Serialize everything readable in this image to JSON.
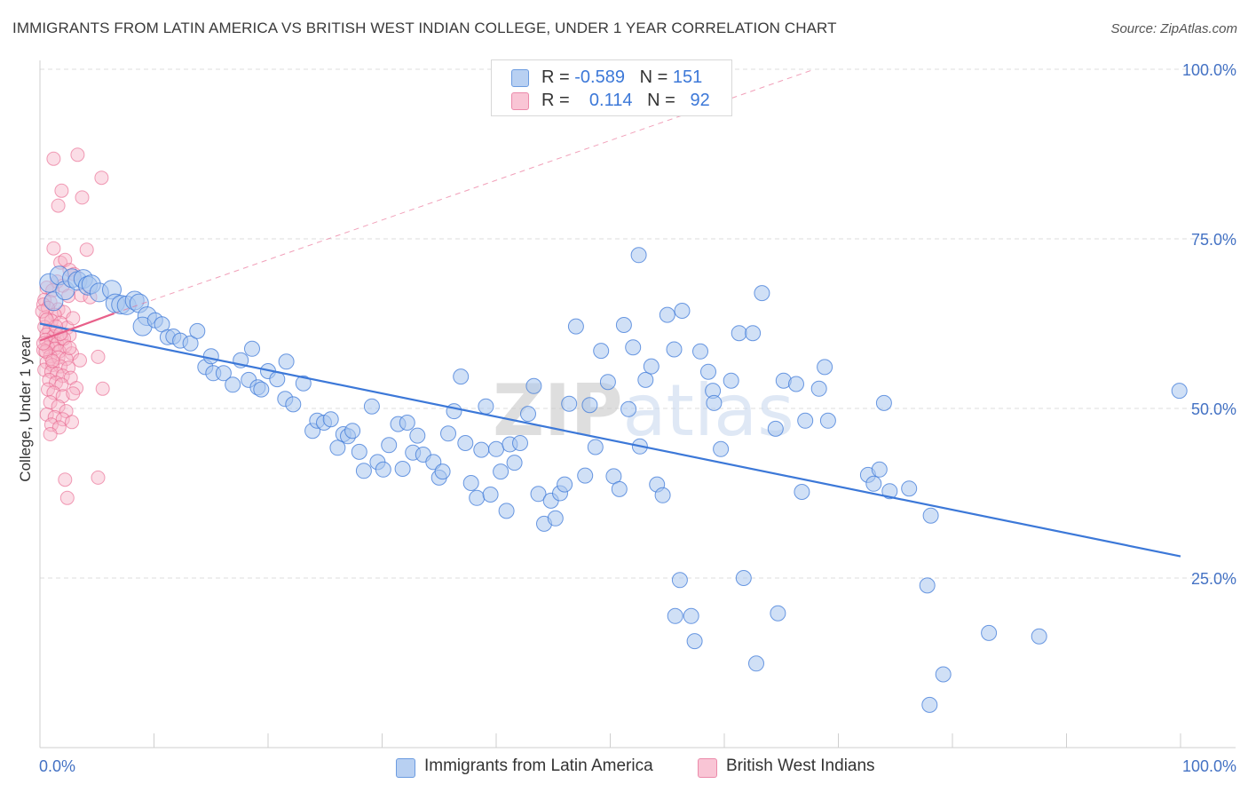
{
  "title": "IMMIGRANTS FROM LATIN AMERICA VS BRITISH WEST INDIAN COLLEGE, UNDER 1 YEAR CORRELATION CHART",
  "source": "Source: ZipAtlas.com",
  "watermark": "ZIPatlas",
  "colors": {
    "blue": "#3c78d8",
    "blue_fill": "#a9c6ef",
    "pink": "#e8608a",
    "pink_fill": "#f6b4c8",
    "axis_label": "#4472c4"
  },
  "legend_top": {
    "rows": [
      {
        "r_label": "R =",
        "r_value": "-0.589",
        "n_label": "N =",
        "n_value": "151"
      },
      {
        "r_label": "R =",
        "r_value": "0.114",
        "n_label": "N =",
        "n_value": "92"
      }
    ]
  },
  "chart_data": {
    "type": "scatter",
    "title": "IMMIGRANTS FROM LATIN AMERICA VS BRITISH WEST INDIAN COLLEGE, UNDER 1 YEAR CORRELATION CHART",
    "xlabel": "",
    "ylabel": "College, Under 1 year",
    "xlim": [
      0,
      100
    ],
    "ylim": [
      0,
      100
    ],
    "x_tick_labels": [
      "0.0%",
      "100.0%"
    ],
    "y_tick_labels": [
      "25.0%",
      "50.0%",
      "75.0%",
      "100.0%"
    ],
    "y_ticks": [
      25,
      50,
      75,
      100
    ],
    "grid": true,
    "legend_position": "bottom",
    "series": [
      {
        "name": "Immigrants from Latin America",
        "R": -0.589,
        "N": 151,
        "trend": {
          "x0": 0,
          "y0": 62.5,
          "x1": 100,
          "y1": 28.2,
          "style": "solid"
        },
        "points": [
          [
            0.8,
            68.5
          ],
          [
            1.2,
            65.8
          ],
          [
            1.7,
            69.6
          ],
          [
            2.2,
            67.4
          ],
          [
            2.8,
            69.2
          ],
          [
            3.3,
            68.8
          ],
          [
            3.8,
            69.1
          ],
          [
            4.2,
            68.1
          ],
          [
            4.5,
            68.3
          ],
          [
            5.2,
            67.1
          ],
          [
            6.3,
            67.5
          ],
          [
            6.6,
            65.5
          ],
          [
            7.1,
            65.3
          ],
          [
            7.6,
            65.2
          ],
          [
            8.3,
            65.9
          ],
          [
            8.7,
            65.5
          ],
          [
            9.4,
            63.6
          ],
          [
            9.0,
            62.1
          ],
          [
            10.1,
            63.0
          ],
          [
            10.7,
            62.4
          ],
          [
            11.2,
            60.5
          ],
          [
            11.7,
            60.6
          ],
          [
            12.3,
            60.0
          ],
          [
            13.2,
            59.6
          ],
          [
            13.8,
            61.4
          ],
          [
            14.5,
            56.1
          ],
          [
            15.0,
            57.7
          ],
          [
            15.2,
            55.2
          ],
          [
            16.1,
            55.2
          ],
          [
            16.9,
            53.5
          ],
          [
            17.6,
            57.1
          ],
          [
            18.3,
            54.2
          ],
          [
            18.6,
            58.8
          ],
          [
            19.1,
            53.1
          ],
          [
            19.4,
            52.8
          ],
          [
            20.0,
            55.5
          ],
          [
            20.8,
            54.3
          ],
          [
            21.6,
            56.9
          ],
          [
            21.5,
            51.4
          ],
          [
            22.2,
            50.6
          ],
          [
            23.1,
            53.7
          ],
          [
            23.9,
            46.7
          ],
          [
            24.3,
            48.2
          ],
          [
            24.9,
            47.9
          ],
          [
            25.5,
            48.4
          ],
          [
            26.1,
            44.2
          ],
          [
            26.6,
            46.2
          ],
          [
            27.0,
            45.9
          ],
          [
            27.4,
            46.7
          ],
          [
            28.0,
            43.6
          ],
          [
            28.4,
            40.8
          ],
          [
            29.1,
            50.3
          ],
          [
            29.6,
            42.1
          ],
          [
            30.1,
            41.0
          ],
          [
            30.6,
            44.6
          ],
          [
            31.4,
            47.7
          ],
          [
            31.8,
            41.1
          ],
          [
            32.2,
            47.9
          ],
          [
            32.7,
            43.5
          ],
          [
            33.1,
            46.0
          ],
          [
            33.6,
            43.2
          ],
          [
            34.5,
            42.1
          ],
          [
            35.0,
            39.8
          ],
          [
            35.3,
            40.7
          ],
          [
            35.8,
            46.3
          ],
          [
            36.3,
            49.6
          ],
          [
            36.9,
            54.7
          ],
          [
            37.3,
            44.9
          ],
          [
            37.8,
            39.0
          ],
          [
            38.3,
            36.8
          ],
          [
            38.7,
            43.9
          ],
          [
            39.1,
            50.3
          ],
          [
            39.5,
            37.3
          ],
          [
            40.0,
            44.0
          ],
          [
            40.4,
            40.7
          ],
          [
            40.9,
            34.9
          ],
          [
            41.2,
            44.7
          ],
          [
            41.6,
            42.0
          ],
          [
            42.1,
            44.9
          ],
          [
            42.8,
            49.2
          ],
          [
            43.3,
            53.3
          ],
          [
            43.7,
            37.4
          ],
          [
            44.2,
            33.0
          ],
          [
            44.8,
            36.4
          ],
          [
            45.2,
            33.8
          ],
          [
            45.6,
            37.5
          ],
          [
            46.0,
            38.8
          ],
          [
            46.4,
            50.7
          ],
          [
            47.0,
            62.1
          ],
          [
            47.8,
            40.1
          ],
          [
            48.2,
            50.5
          ],
          [
            48.7,
            44.3
          ],
          [
            49.2,
            58.5
          ],
          [
            49.8,
            53.9
          ],
          [
            50.3,
            40.0
          ],
          [
            50.8,
            38.1
          ],
          [
            51.2,
            62.3
          ],
          [
            51.6,
            49.9
          ],
          [
            52.0,
            59.0
          ],
          [
            52.6,
            44.4
          ],
          [
            52.5,
            72.6
          ],
          [
            53.1,
            54.2
          ],
          [
            53.6,
            56.2
          ],
          [
            54.1,
            38.8
          ],
          [
            54.6,
            37.2
          ],
          [
            55.0,
            63.8
          ],
          [
            55.6,
            58.7
          ],
          [
            56.3,
            64.4
          ],
          [
            56.1,
            24.7
          ],
          [
            55.7,
            19.4
          ],
          [
            57.1,
            19.4
          ],
          [
            57.4,
            15.7
          ],
          [
            57.9,
            58.4
          ],
          [
            58.6,
            55.4
          ],
          [
            59.0,
            52.6
          ],
          [
            59.1,
            50.8
          ],
          [
            59.7,
            44.0
          ],
          [
            60.6,
            54.1
          ],
          [
            61.3,
            61.1
          ],
          [
            61.7,
            25.0
          ],
          [
            62.5,
            61.1
          ],
          [
            63.3,
            67.0
          ],
          [
            62.8,
            12.4
          ],
          [
            64.5,
            47.0
          ],
          [
            64.7,
            19.8
          ],
          [
            65.2,
            54.1
          ],
          [
            66.3,
            53.6
          ],
          [
            66.8,
            37.7
          ],
          [
            67.1,
            48.2
          ],
          [
            68.3,
            52.9
          ],
          [
            68.8,
            56.1
          ],
          [
            69.1,
            48.2
          ],
          [
            72.6,
            40.2
          ],
          [
            73.1,
            38.9
          ],
          [
            73.6,
            41.0
          ],
          [
            74.0,
            50.8
          ],
          [
            74.5,
            37.8
          ],
          [
            76.2,
            38.2
          ],
          [
            77.8,
            23.9
          ],
          [
            78.1,
            34.2
          ],
          [
            78.0,
            6.3
          ],
          [
            79.2,
            10.8
          ],
          [
            83.2,
            16.9
          ],
          [
            87.6,
            16.4
          ],
          [
            99.9,
            52.6
          ]
        ]
      },
      {
        "name": "British West Indians",
        "R": 0.114,
        "N": 92,
        "trend": {
          "x0": 0,
          "y0": 60.0,
          "x1": 6.5,
          "y1": 64.0,
          "style": "solid",
          "dashed_extension_to": [
            100,
            118.9
          ]
        },
        "points": [
          [
            1.2,
            86.8
          ],
          [
            3.3,
            87.4
          ],
          [
            5.4,
            84.0
          ],
          [
            1.9,
            82.1
          ],
          [
            1.6,
            79.9
          ],
          [
            3.7,
            81.1
          ],
          [
            1.2,
            73.6
          ],
          [
            4.1,
            73.4
          ],
          [
            1.8,
            71.5
          ],
          [
            2.2,
            71.9
          ],
          [
            2.6,
            70.4
          ],
          [
            3.0,
            69.8
          ],
          [
            1.5,
            68.7
          ],
          [
            2.0,
            68.1
          ],
          [
            0.6,
            67.8
          ],
          [
            1.1,
            67.4
          ],
          [
            2.5,
            66.6
          ],
          [
            0.4,
            66.0
          ],
          [
            0.9,
            65.7
          ],
          [
            1.6,
            64.6
          ],
          [
            2.1,
            64.2
          ],
          [
            0.3,
            65.3
          ],
          [
            0.7,
            64.8
          ],
          [
            1.3,
            63.8
          ],
          [
            0.5,
            63.4
          ],
          [
            1.0,
            62.9
          ],
          [
            1.8,
            62.6
          ],
          [
            2.4,
            61.9
          ],
          [
            0.4,
            62.0
          ],
          [
            0.8,
            61.5
          ],
          [
            1.4,
            61.3
          ],
          [
            0.6,
            60.9
          ],
          [
            1.2,
            60.6
          ],
          [
            1.9,
            60.4
          ],
          [
            2.6,
            60.8
          ],
          [
            0.5,
            60.1
          ],
          [
            1.0,
            59.8
          ],
          [
            1.5,
            59.5
          ],
          [
            2.2,
            59.2
          ],
          [
            0.7,
            59.0
          ],
          [
            1.3,
            58.8
          ],
          [
            0.3,
            58.6
          ],
          [
            1.7,
            58.4
          ],
          [
            2.8,
            58.1
          ],
          [
            0.9,
            57.7
          ],
          [
            1.6,
            57.5
          ],
          [
            2.3,
            57.3
          ],
          [
            3.5,
            57.1
          ],
          [
            5.1,
            57.6
          ],
          [
            0.6,
            56.8
          ],
          [
            1.1,
            56.4
          ],
          [
            1.8,
            56.2
          ],
          [
            2.5,
            56.0
          ],
          [
            0.4,
            55.7
          ],
          [
            1.0,
            55.4
          ],
          [
            1.5,
            55.1
          ],
          [
            2.0,
            54.8
          ],
          [
            2.7,
            54.5
          ],
          [
            0.8,
            54.2
          ],
          [
            1.4,
            53.8
          ],
          [
            1.9,
            53.5
          ],
          [
            3.2,
            53.0
          ],
          [
            0.7,
            52.8
          ],
          [
            1.2,
            52.3
          ],
          [
            2.0,
            51.8
          ],
          [
            5.5,
            52.9
          ],
          [
            2.9,
            52.2
          ],
          [
            0.9,
            50.9
          ],
          [
            1.6,
            50.3
          ],
          [
            2.3,
            49.6
          ],
          [
            0.6,
            49.1
          ],
          [
            1.3,
            48.7
          ],
          [
            2.0,
            48.4
          ],
          [
            2.8,
            48.0
          ],
          [
            1.0,
            47.6
          ],
          [
            1.7,
            47.2
          ],
          [
            0.9,
            46.2
          ],
          [
            2.2,
            39.5
          ],
          [
            5.1,
            39.8
          ],
          [
            2.4,
            36.8
          ],
          [
            0.5,
            58.4
          ],
          [
            1.1,
            57.0
          ],
          [
            2.1,
            60.3
          ],
          [
            1.4,
            62.1
          ],
          [
            0.2,
            64.3
          ],
          [
            0.6,
            63.1
          ],
          [
            2.9,
            63.3
          ],
          [
            3.6,
            66.7
          ],
          [
            4.4,
            66.4
          ],
          [
            0.3,
            59.6
          ],
          [
            1.8,
            61.0
          ],
          [
            2.6,
            58.9
          ]
        ]
      }
    ]
  },
  "bottom_legend": [
    {
      "label": "Immigrants from Latin America"
    },
    {
      "label": "British West Indians"
    }
  ]
}
